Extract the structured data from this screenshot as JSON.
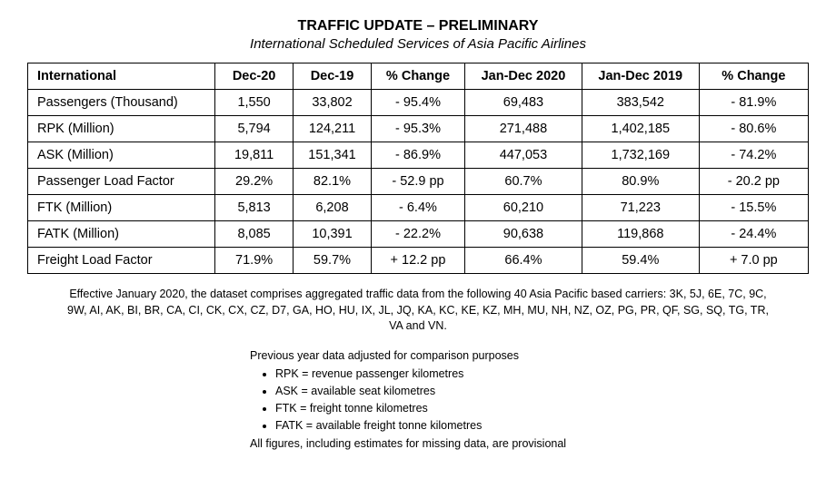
{
  "title": "TRAFFIC UPDATE – PRELIMINARY",
  "subtitle": "International Scheduled Services of Asia Pacific Airlines",
  "table": {
    "columns": [
      "International",
      "Dec-20",
      "Dec-19",
      "% Change",
      "Jan-Dec 2020",
      "Jan-Dec 2019",
      "% Change"
    ],
    "rows": [
      [
        "Passengers (Thousand)",
        "1,550",
        "33,802",
        "- 95.4%",
        "69,483",
        "383,542",
        "- 81.9%"
      ],
      [
        "RPK (Million)",
        "5,794",
        "124,211",
        "- 95.3%",
        "271,488",
        "1,402,185",
        "- 80.6%"
      ],
      [
        "ASK (Million)",
        "19,811",
        "151,341",
        "- 86.9%",
        "447,053",
        "1,732,169",
        "- 74.2%"
      ],
      [
        "Passenger Load Factor",
        "29.2%",
        "82.1%",
        "- 52.9 pp",
        "60.7%",
        "80.9%",
        "- 20.2 pp"
      ],
      [
        "FTK (Million)",
        "5,813",
        "6,208",
        "- 6.4%",
        "60,210",
        "71,223",
        "- 15.5%"
      ],
      [
        "FATK (Million)",
        "8,085",
        "10,391",
        "- 22.2%",
        "90,638",
        "119,868",
        "- 24.4%"
      ],
      [
        "Freight Load Factor",
        "71.9%",
        "59.7%",
        "+ 12.2 pp",
        "66.4%",
        "59.4%",
        "+ 7.0 pp"
      ]
    ],
    "col_widths_pct": [
      24,
      10,
      10,
      12,
      15,
      15,
      14
    ],
    "border_color": "#000000",
    "font_size": 14.5
  },
  "footnote": "Effective January 2020, the dataset comprises aggregated traffic data from the following 40 Asia Pacific based carriers: 3K, 5J, 6E, 7C, 9C, 9W, AI, AK, BI, BR, CA, CI, CK, CX, CZ, D7, GA, HO, HU, IX, JL, JQ, KA, KC, KE, KZ, MH, MU, NH, NZ, OZ, PG, PR, QF, SG, SQ, TG, TR, VA and VN.",
  "legend": {
    "intro": "Previous year data adjusted for comparison purposes",
    "items": [
      "RPK = revenue passenger kilometres",
      "ASK = available seat kilometres",
      "FTK = freight tonne kilometres",
      "FATK = available freight tonne kilometres"
    ],
    "outro": "All figures, including estimates for missing data, are provisional"
  },
  "colors": {
    "text": "#000000",
    "background": "#ffffff"
  }
}
